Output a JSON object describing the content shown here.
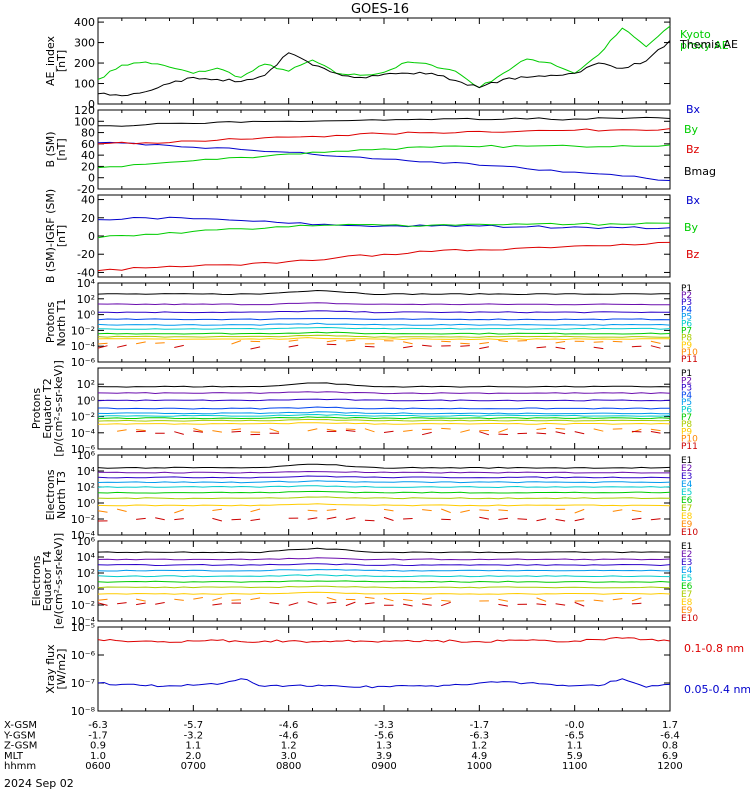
{
  "title": "GOES-16",
  "date_label": "2024 Sep 02",
  "ephemeris": {
    "rows": [
      {
        "label": "X-GSM",
        "values": [
          "-6.3",
          "-5.7",
          "-4.6",
          "-3.3",
          "-1.7",
          "-0.0",
          "1.7"
        ]
      },
      {
        "label": "Y-GSM",
        "values": [
          "-1.7",
          "-3.2",
          "-4.6",
          "-5.6",
          "-6.3",
          "-6.5",
          "-6.4"
        ]
      },
      {
        "label": "Z-GSM",
        "values": [
          "0.9",
          "1.1",
          "1.2",
          "1.3",
          "1.2",
          "1.1",
          "0.8"
        ]
      },
      {
        "label": "MLT",
        "values": [
          "1.0",
          "2.0",
          "3.0",
          "3.9",
          "4.9",
          "5.9",
          "6.9"
        ]
      },
      {
        "label": "hhmm",
        "values": [
          "0600",
          "0700",
          "0800",
          "0900",
          "1000",
          "1100",
          "1200"
        ]
      }
    ]
  },
  "chart_data": [
    {
      "type": "line",
      "ylabel": "AE_index\n[nT]",
      "ylim": [
        0,
        420
      ],
      "yticks": [
        {
          "v": 0,
          "t": "0"
        },
        {
          "v": 100,
          "t": "100"
        },
        {
          "v": 200,
          "t": "200"
        },
        {
          "v": 300,
          "t": "300"
        },
        {
          "v": 400,
          "t": "400"
        }
      ],
      "x_hours": [
        6,
        6.25,
        6.5,
        6.75,
        7,
        7.25,
        7.5,
        7.75,
        8,
        8.25,
        8.5,
        8.75,
        9,
        9.25,
        9.5,
        9.75,
        10,
        10.25,
        10.5,
        10.75,
        11,
        11.25,
        11.5,
        11.75,
        12
      ],
      "series": [
        {
          "name": "Kyoto\nproxy AE",
          "color": "#00cc00",
          "values": [
            120,
            190,
            205,
            180,
            150,
            175,
            130,
            195,
            160,
            215,
            150,
            140,
            155,
            205,
            190,
            160,
            80,
            150,
            220,
            200,
            150,
            240,
            370,
            280,
            380
          ]
        },
        {
          "name": "Themis AE",
          "color": "#000000",
          "values": [
            50,
            40,
            60,
            100,
            130,
            120,
            110,
            140,
            250,
            190,
            150,
            130,
            145,
            150,
            150,
            115,
            80,
            120,
            130,
            140,
            150,
            200,
            175,
            210,
            310
          ]
        }
      ]
    },
    {
      "type": "line",
      "ylabel": "B (SM)\n[nT]",
      "ylim": [
        -20,
        120
      ],
      "yticks": [
        {
          "v": -20,
          "t": "-20"
        },
        {
          "v": 0,
          "t": "0"
        },
        {
          "v": 20,
          "t": "20"
        },
        {
          "v": 40,
          "t": "40"
        },
        {
          "v": 60,
          "t": "60"
        },
        {
          "v": 80,
          "t": "80"
        },
        {
          "v": 100,
          "t": "100"
        },
        {
          "v": 120,
          "t": "120"
        }
      ],
      "x_hours": [
        6,
        6.5,
        7,
        7.5,
        8,
        8.5,
        9,
        9.5,
        10,
        10.5,
        11,
        11.5,
        12
      ],
      "series": [
        {
          "name": "Bx",
          "color": "#0000cc",
          "values": [
            62,
            58,
            54,
            50,
            45,
            38,
            33,
            28,
            22,
            16,
            10,
            3,
            -5
          ]
        },
        {
          "name": "By",
          "color": "#00cc00",
          "values": [
            18,
            24,
            30,
            36,
            42,
            47,
            51,
            54,
            55,
            56,
            56,
            57,
            58
          ]
        },
        {
          "name": "Bz",
          "color": "#dd0000",
          "values": [
            60,
            62,
            65,
            68,
            72,
            75,
            78,
            80,
            82,
            83,
            84,
            85,
            87
          ]
        },
        {
          "name": "Bmag",
          "color": "#000000",
          "values": [
            92,
            94,
            96,
            98,
            100,
            101,
            102,
            103,
            103,
            104,
            104,
            105,
            105
          ]
        }
      ]
    },
    {
      "type": "line",
      "ylabel": "B (SM)-IGRF (SM)\n[nT]",
      "ylim": [
        -45,
        45
      ],
      "yticks": [
        {
          "v": -40,
          "t": "-40"
        },
        {
          "v": -20,
          "t": "-20"
        },
        {
          "v": 0,
          "t": "0"
        },
        {
          "v": 20,
          "t": "20"
        },
        {
          "v": 40,
          "t": "40"
        }
      ],
      "x_hours": [
        6,
        6.5,
        7,
        7.5,
        8,
        8.5,
        9,
        9.5,
        10,
        10.5,
        11,
        11.5,
        12
      ],
      "series": [
        {
          "name": "Bx",
          "color": "#0000cc",
          "values": [
            18,
            20,
            19,
            17,
            14,
            12,
            11,
            11,
            11,
            10,
            10,
            9,
            9
          ]
        },
        {
          "name": "By",
          "color": "#00cc00",
          "values": [
            -2,
            2,
            5,
            8,
            10,
            12,
            12,
            12,
            13,
            13,
            13,
            13,
            14
          ]
        },
        {
          "name": "Bz",
          "color": "#dd0000",
          "values": [
            -38,
            -35,
            -33,
            -32,
            -28,
            -24,
            -20,
            -17,
            -15,
            -13,
            -11,
            -9,
            -7
          ]
        }
      ]
    },
    {
      "type": "line",
      "ylabel": "Protons\nNorth T1",
      "log": true,
      "ylim": [
        -6,
        4
      ],
      "yticks": [
        {
          "v": -6,
          "t": "10⁻⁶"
        },
        {
          "v": -4,
          "t": "10⁻⁴"
        },
        {
          "v": -2,
          "t": "10⁻²"
        },
        {
          "v": 0,
          "t": "10⁰"
        },
        {
          "v": 2,
          "t": "10²"
        },
        {
          "v": 4,
          "t": "10⁴"
        }
      ],
      "series": [
        {
          "name": "P1",
          "color": "#000000",
          "level": 2.6
        },
        {
          "name": "P2",
          "color": "#6a0dad",
          "level": 1.3
        },
        {
          "name": "P3",
          "color": "#2b00c8",
          "level": 0.3
        },
        {
          "name": "P4",
          "color": "#0044ee",
          "level": -0.6
        },
        {
          "name": "P5",
          "color": "#0099ee",
          "level": -1.3
        },
        {
          "name": "P6",
          "color": "#00cccc",
          "level": -1.8
        },
        {
          "name": "P7",
          "color": "#00cc00",
          "level": -2.4
        },
        {
          "name": "P8",
          "color": "#aacc00",
          "level": -2.8
        },
        {
          "name": "P9",
          "color": "#ffcc00",
          "level": -3.1
        },
        {
          "name": "P10",
          "color": "#ff8800",
          "level": -3.5
        },
        {
          "name": "P11",
          "color": "#cc0000",
          "level": -4.1
        }
      ]
    },
    {
      "type": "line",
      "ylabel": "Protons\nEquator T2\n[p/(cm²-s-sr-keV)]",
      "log": true,
      "ylim": [
        -6,
        4
      ],
      "yticks": [
        {
          "v": -6,
          "t": "10⁻⁶"
        },
        {
          "v": -4,
          "t": "10⁻⁴"
        },
        {
          "v": -2,
          "t": "10⁻²"
        },
        {
          "v": 0,
          "t": "10⁰"
        },
        {
          "v": 2,
          "t": "10²"
        }
      ],
      "series": [
        {
          "name": "P1",
          "color": "#000000",
          "level": 1.7
        },
        {
          "name": "P2",
          "color": "#6a0dad",
          "level": 0.9
        },
        {
          "name": "P3",
          "color": "#2b00c8",
          "level": 0.0
        },
        {
          "name": "P4",
          "color": "#0044ee",
          "level": -1.0
        },
        {
          "name": "P5",
          "color": "#0099ee",
          "level": -1.6
        },
        {
          "name": "P6",
          "color": "#00cccc",
          "level": -1.9
        },
        {
          "name": "P7",
          "color": "#00cc00",
          "level": -2.2
        },
        {
          "name": "P8",
          "color": "#aacc00",
          "level": -2.5
        },
        {
          "name": "P9",
          "color": "#ffcc00",
          "level": -2.9
        },
        {
          "name": "P10",
          "color": "#ff8800",
          "level": -3.7
        },
        {
          "name": "P11",
          "color": "#cc0000",
          "level": -4.0
        }
      ]
    },
    {
      "type": "line",
      "ylabel": "Electrons\nNorth T3",
      "log": true,
      "ylim": [
        -4,
        6
      ],
      "yticks": [
        {
          "v": -4,
          "t": "10⁻⁴"
        },
        {
          "v": -2,
          "t": "10⁻²"
        },
        {
          "v": 0,
          "t": "10⁰"
        },
        {
          "v": 2,
          "t": "10²"
        },
        {
          "v": 4,
          "t": "10⁴"
        },
        {
          "v": 6,
          "t": "10⁶"
        }
      ],
      "series": [
        {
          "name": "E1",
          "color": "#000000",
          "level": 4.4
        },
        {
          "name": "E2",
          "color": "#6a0dad",
          "level": 3.8
        },
        {
          "name": "E3",
          "color": "#2b00c8",
          "level": 3.2
        },
        {
          "name": "E4",
          "color": "#0099ee",
          "level": 2.6
        },
        {
          "name": "E5",
          "color": "#00cccc",
          "level": 2.0
        },
        {
          "name": "E6",
          "color": "#00cc00",
          "level": 1.3
        },
        {
          "name": "E7",
          "color": "#aacc00",
          "level": 0.6
        },
        {
          "name": "E8",
          "color": "#ffcc00",
          "level": -0.3
        },
        {
          "name": "E9",
          "color": "#ff8800",
          "level": -1.0
        },
        {
          "name": "E10",
          "color": "#cc0000",
          "level": -2.0
        }
      ]
    },
    {
      "type": "line",
      "ylabel": "Electrons\nEquator T4\n[e/(cm²-s-sr-keV)]",
      "log": true,
      "ylim": [
        -4,
        6
      ],
      "yticks": [
        {
          "v": -4,
          "t": "10⁻⁴"
        },
        {
          "v": -2,
          "t": "10⁻²"
        },
        {
          "v": 0,
          "t": "10⁰"
        },
        {
          "v": 2,
          "t": "10²"
        },
        {
          "v": 4,
          "t": "10⁴"
        },
        {
          "v": 6,
          "t": "10⁶"
        }
      ],
      "series": [
        {
          "name": "E1",
          "color": "#000000",
          "level": 4.6
        },
        {
          "name": "E2",
          "color": "#6a0dad",
          "level": 3.7
        },
        {
          "name": "E3",
          "color": "#2b00c8",
          "level": 3.0
        },
        {
          "name": "E4",
          "color": "#0099ee",
          "level": 2.3
        },
        {
          "name": "E5",
          "color": "#00cccc",
          "level": 1.6
        },
        {
          "name": "E6",
          "color": "#00cc00",
          "level": 0.9
        },
        {
          "name": "E7",
          "color": "#aacc00",
          "level": 0.2
        },
        {
          "name": "E8",
          "color": "#ffcc00",
          "level": -0.6
        },
        {
          "name": "E9",
          "color": "#ff8800",
          "level": -1.3
        },
        {
          "name": "E10",
          "color": "#cc0000",
          "level": -1.9
        }
      ]
    },
    {
      "type": "line",
      "ylabel": "Xray flux\n[W/m2]",
      "log": true,
      "ylim": [
        -8,
        -5
      ],
      "yticks": [
        {
          "v": -8,
          "t": "10⁻⁸"
        },
        {
          "v": -7,
          "t": "10⁻⁷"
        },
        {
          "v": -6,
          "t": "10⁻⁶"
        },
        {
          "v": -5,
          "t": "10⁻⁵"
        }
      ],
      "x_hours": [
        6,
        6.25,
        6.5,
        6.75,
        7,
        7.25,
        7.5,
        7.75,
        8,
        8.25,
        8.5,
        8.75,
        9,
        9.25,
        9.5,
        9.75,
        10,
        10.25,
        10.5,
        10.75,
        11,
        11.25,
        11.5,
        11.75,
        12
      ],
      "series": [
        {
          "name": "0.1-0.8 nm",
          "color": "#dd0000",
          "values": [
            -5.45,
            -5.5,
            -5.5,
            -5.55,
            -5.5,
            -5.48,
            -5.52,
            -5.5,
            -5.5,
            -5.52,
            -5.5,
            -5.5,
            -5.5,
            -5.48,
            -5.5,
            -5.5,
            -5.52,
            -5.5,
            -5.48,
            -5.5,
            -5.5,
            -5.45,
            -5.4,
            -5.45,
            -5.5
          ]
        },
        {
          "name": "0.05-0.4 nm",
          "color": "#0000cc",
          "values": [
            -7.0,
            -7.05,
            -7.1,
            -7.1,
            -7.08,
            -7.05,
            -6.85,
            -7.12,
            -7.1,
            -7.12,
            -7.1,
            -7.15,
            -7.12,
            -7.1,
            -7.1,
            -7.05,
            -7.0,
            -6.95,
            -7.0,
            -7.05,
            -7.1,
            -7.1,
            -6.85,
            -7.15,
            -7.05
          ]
        }
      ]
    }
  ]
}
